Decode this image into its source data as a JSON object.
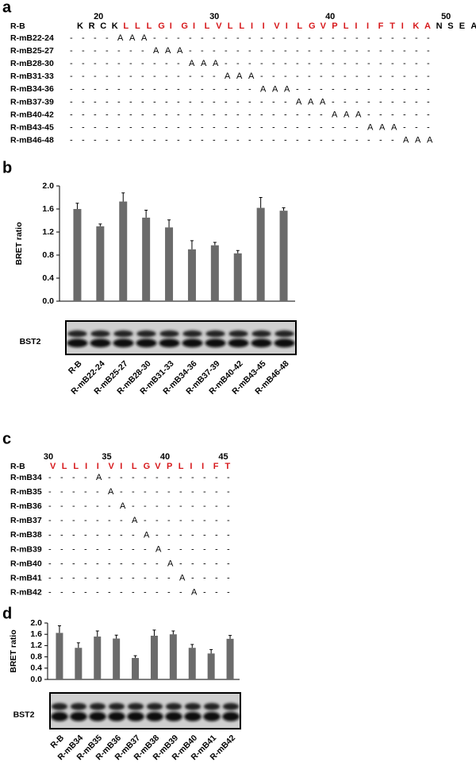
{
  "panel_labels": [
    "a",
    "b",
    "c",
    "d"
  ],
  "alignment_a": {
    "ruler": [
      "20",
      "30",
      "40",
      "50"
    ],
    "reference": {
      "label": "R-B",
      "segments": [
        {
          "text": "KRCK",
          "color": "#000000"
        },
        {
          "text": "LLLGIGILVLLIIVILGVPLIIFTIKA",
          "color": "#d7191c"
        },
        {
          "text": "NSEA",
          "color": "#000000"
        }
      ]
    },
    "rows": [
      {
        "label": "R-mB22-24",
        "residues": "----AAA------------------------"
      },
      {
        "label": "R-mB25-27",
        "residues": "-------AAA---------------------"
      },
      {
        "label": "R-mB28-30",
        "residues": "----------AAA------------------"
      },
      {
        "label": "R-mB31-33",
        "residues": "-------------AAA---------------"
      },
      {
        "label": "R-mB34-36",
        "residues": "----------------AAA------------"
      },
      {
        "label": "R-mB37-39",
        "residues": "-------------------AAA---------"
      },
      {
        "label": "R-mB40-42",
        "residues": "----------------------AAA------"
      },
      {
        "label": "R-mB43-45",
        "residues": "-------------------------AAA---"
      },
      {
        "label": "R-mB46-48",
        "residues": "----------------------------AAA"
      }
    ]
  },
  "alignment_c": {
    "ruler": [
      "30",
      "35",
      "40",
      "45"
    ],
    "reference": {
      "label": "R-B",
      "segments": [
        {
          "text": "VLLIIVILGVPLIIFT",
          "color": "#d7191c"
        }
      ]
    },
    "rows": [
      {
        "label": "R-mB34",
        "residues": "----A-----------"
      },
      {
        "label": "R-mB35",
        "residues": "-----A----------"
      },
      {
        "label": "R-mB36",
        "residues": "------A---------"
      },
      {
        "label": "R-mB37",
        "residues": "-------A--------"
      },
      {
        "label": "R-mB38",
        "residues": "--------A-------"
      },
      {
        "label": "R-mB39",
        "residues": "---------A------"
      },
      {
        "label": "R-mB40",
        "residues": "----------A-----"
      },
      {
        "label": "R-mB41",
        "residues": "-----------A----"
      },
      {
        "label": "R-mB42",
        "residues": "------------A---"
      }
    ]
  },
  "chart_data": [
    {
      "type": "bar",
      "ylabel": "BRET ratio",
      "blot_label": "BST2",
      "color": "#6b6b6b",
      "categories": [
        "R-B",
        "R-mB22-24",
        "R-mB25-27",
        "R-mB28-30",
        "R-mB31-33",
        "R-mB34-36",
        "R-mB37-39",
        "R-mB40-42",
        "R-mB43-45",
        "R-mB46-48"
      ],
      "values": [
        1.6,
        1.3,
        1.73,
        1.45,
        1.28,
        0.9,
        0.97,
        0.83,
        1.62,
        1.57
      ],
      "errors": [
        0.1,
        0.04,
        0.15,
        0.13,
        0.13,
        0.15,
        0.05,
        0.05,
        0.18,
        0.05
      ],
      "ylim": [
        0,
        2
      ],
      "yticks": [
        {
          "value": 0,
          "label": "0.0"
        },
        0.4,
        0.8,
        1.2,
        1.6,
        {
          "value": 2,
          "label": "2.0"
        }
      ]
    },
    {
      "type": "bar",
      "ylabel": "BRET ratio",
      "blot_label": "BST2",
      "color": "#6b6b6b",
      "categories": [
        "R-B",
        "R-mB34",
        "R-mB35",
        "R-mB36",
        "R-mB37",
        "R-mB38",
        "R-mB39",
        "R-mB40",
        "R-mB41",
        "R-mB42"
      ],
      "values": [
        1.65,
        1.12,
        1.52,
        1.45,
        0.76,
        1.55,
        1.6,
        1.12,
        0.92,
        1.44
      ],
      "errors": [
        0.25,
        0.18,
        0.2,
        0.12,
        0.08,
        0.2,
        0.12,
        0.12,
        0.14,
        0.12
      ],
      "ylim": [
        0,
        2
      ],
      "yticks": [
        {
          "value": 0,
          "label": "0.0"
        },
        0.4,
        0.8,
        1.2,
        1.6,
        {
          "value": 2,
          "label": "2.0"
        }
      ]
    }
  ]
}
